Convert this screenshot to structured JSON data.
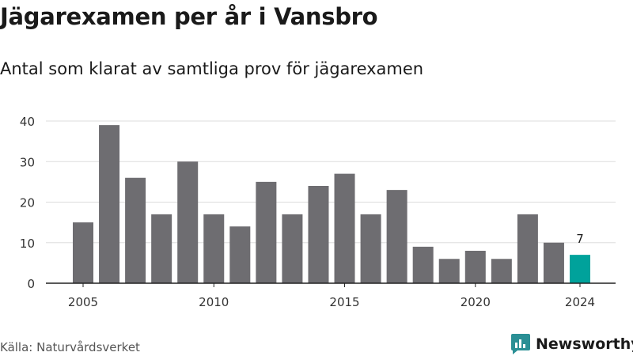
{
  "header": {
    "title": "Jägarexamen per år i Vansbro",
    "subtitle": "Antal som klarat av samtliga prov för jägarexamen"
  },
  "footer": {
    "source": "Källa: Naturvårdsverket",
    "brand": "Newsworthy"
  },
  "colors": {
    "bar": "#6e6d71",
    "highlight": "#00a29b",
    "grid": "#dddddd",
    "axis": "#222222",
    "brand": "#2a8f95"
  },
  "chart_data": {
    "type": "bar",
    "categories": [
      "2005",
      "2006",
      "2007",
      "2008",
      "2009",
      "2010",
      "2011",
      "2012",
      "2013",
      "2014",
      "2015",
      "2016",
      "2017",
      "2018",
      "2019",
      "2020",
      "2021",
      "2022",
      "2023",
      "2024"
    ],
    "values": [
      15,
      39,
      26,
      17,
      30,
      17,
      14,
      25,
      17,
      24,
      27,
      17,
      23,
      9,
      6,
      8,
      6,
      17,
      10,
      7
    ],
    "x_tick_labels": [
      "2005",
      "2010",
      "2015",
      "2020",
      "2024"
    ],
    "y_ticks": [
      0,
      10,
      20,
      30,
      40
    ],
    "ylim": [
      0,
      40
    ],
    "grid": true,
    "highlight_category": "2024",
    "data_labels": [
      {
        "category": "2024",
        "text": "7"
      }
    ]
  }
}
